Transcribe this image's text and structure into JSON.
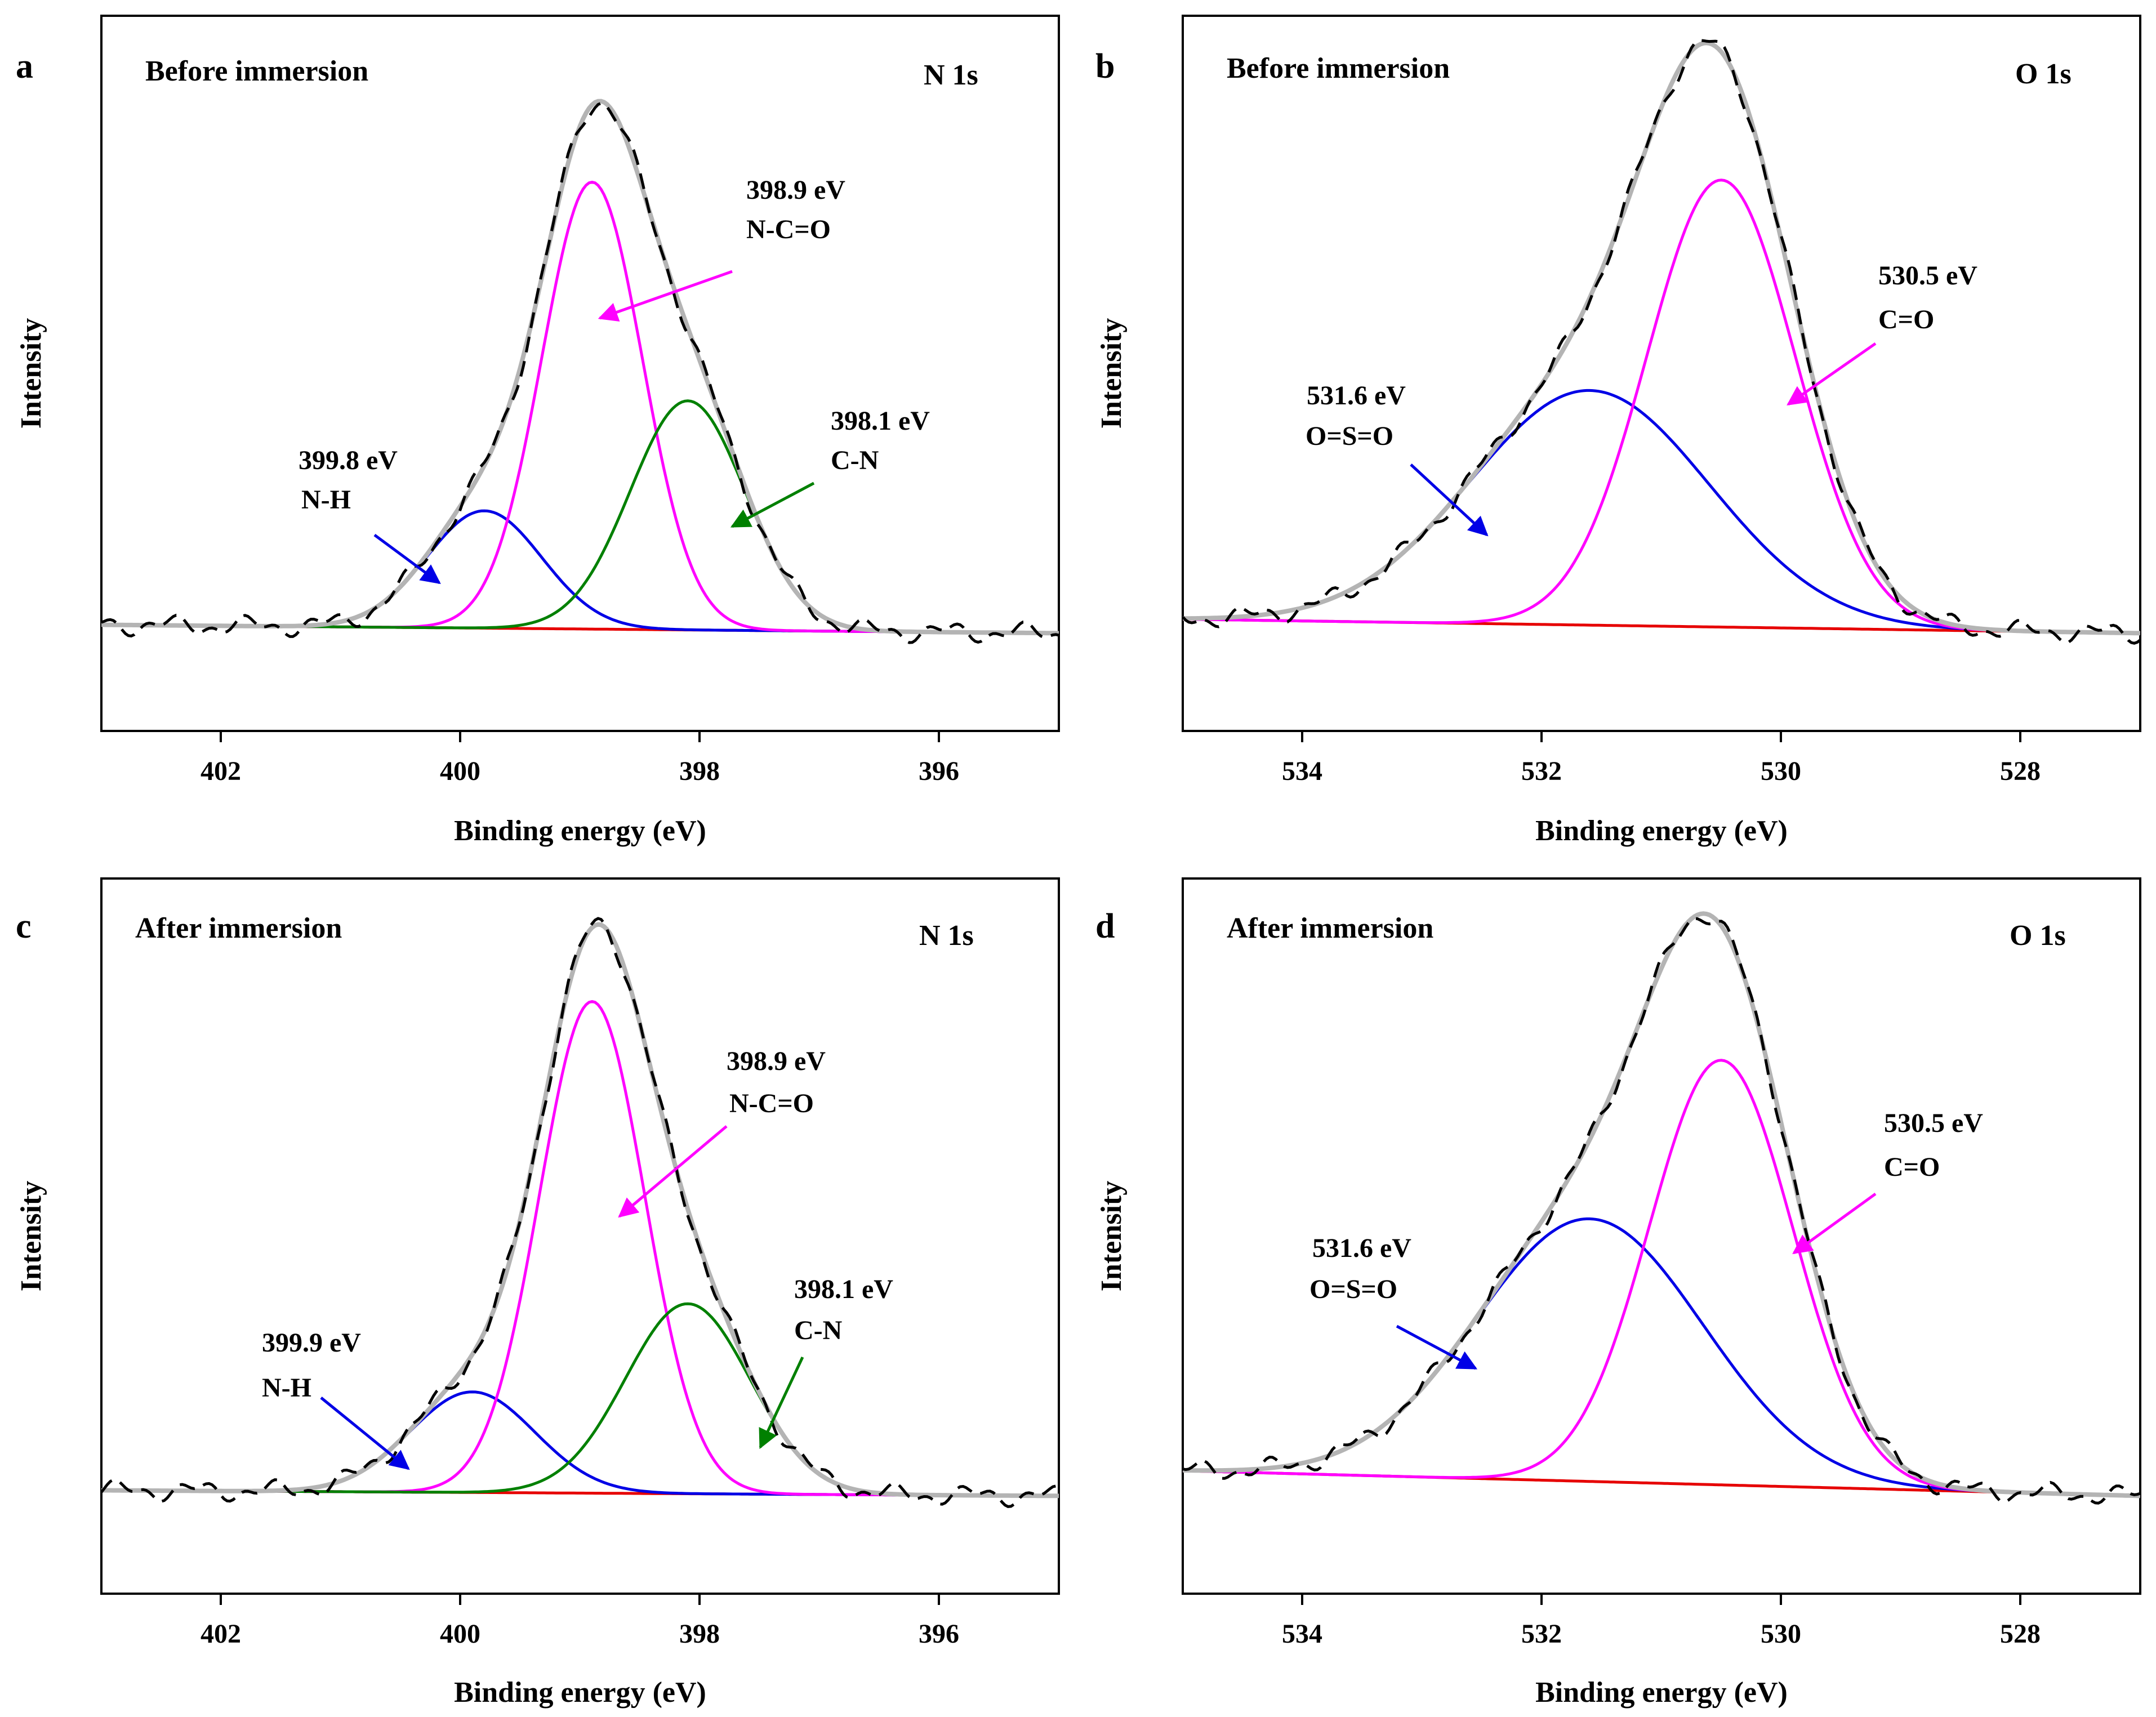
{
  "figure": {
    "x_axis_label": "Binding energy (eV)",
    "y_axis_label": "Intensity",
    "colors": {
      "experimental": "#000000",
      "envelope": "#b4b4b4",
      "background": "#e60000",
      "nh": "#0000e6",
      "nco": "#ff00ff",
      "cn": "#008000",
      "ososo": "#0000e6",
      "co": "#ff00ff"
    }
  },
  "chart_data": [
    {
      "panel": "a",
      "type": "line",
      "title": "Before immersion",
      "spectrum": "N 1s",
      "xlabel": "Binding energy (eV)",
      "ylabel": "Intensity",
      "xlim": [
        403,
        395
      ],
      "ylim": [
        -0.18,
        1.1
      ],
      "xticks": [
        402,
        400,
        398,
        396
      ],
      "baseline": [
        0.01,
        -0.005
      ],
      "components": [
        {
          "name": "N-H",
          "color_key": "nh",
          "center": 399.8,
          "amp": 0.21,
          "sigma": 0.48
        },
        {
          "name": "N-C=O",
          "color_key": "nco",
          "center": 398.9,
          "amp": 0.8,
          "sigma": 0.42
        },
        {
          "name": "C-N",
          "color_key": "cn",
          "center": 398.1,
          "amp": 0.41,
          "sigma": 0.48
        }
      ],
      "annotations": [
        {
          "energy": "398.9 eV",
          "label": "N-C=O",
          "color_key": "nco"
        },
        {
          "energy": "398.1 eV",
          "label": "C-N",
          "color_key": "cn"
        },
        {
          "energy": "399.8 eV",
          "label": "N-H",
          "color_key": "nh"
        }
      ]
    },
    {
      "panel": "b",
      "type": "line",
      "title": "Before immersion",
      "spectrum": "O 1s",
      "xlabel": "Binding energy (eV)",
      "ylabel": "Intensity",
      "xlim": [
        535,
        527
      ],
      "ylim": [
        -0.18,
        1.1
      ],
      "xticks": [
        534,
        532,
        530,
        528
      ],
      "baseline": [
        0.02,
        -0.005
      ],
      "components": [
        {
          "name": "O=S=O",
          "color_key": "ososo",
          "center": 531.6,
          "amp": 0.42,
          "sigma": 1.0
        },
        {
          "name": "C=O",
          "color_key": "co",
          "center": 530.5,
          "amp": 0.8,
          "sigma": 0.62
        }
      ],
      "annotations": [
        {
          "energy": "530.5 eV",
          "label": "C=O",
          "color_key": "co"
        },
        {
          "energy": "531.6 eV",
          "label": "O=S=O",
          "color_key": "ososo"
        }
      ]
    },
    {
      "panel": "c",
      "type": "line",
      "title": "After immersion",
      "spectrum": "N 1s",
      "xlabel": "Binding energy (eV)",
      "ylabel": "Intensity",
      "xlim": [
        403,
        395
      ],
      "ylim": [
        -0.18,
        1.1
      ],
      "xticks": [
        402,
        400,
        398,
        396
      ],
      "baseline": [
        0.005,
        -0.005
      ],
      "components": [
        {
          "name": "N-H",
          "color_key": "nh",
          "center": 399.9,
          "amp": 0.18,
          "sigma": 0.52
        },
        {
          "name": "N-C=O",
          "color_key": "nco",
          "center": 398.9,
          "amp": 0.88,
          "sigma": 0.44
        },
        {
          "name": "C-N",
          "color_key": "cn",
          "center": 398.1,
          "amp": 0.34,
          "sigma": 0.52
        }
      ],
      "annotations": [
        {
          "energy": "398.9 eV",
          "label": "N-C=O",
          "color_key": "nco"
        },
        {
          "energy": "398.1 eV",
          "label": "C-N",
          "color_key": "cn"
        },
        {
          "energy": "399.9 eV",
          "label": "N-H",
          "color_key": "nh"
        }
      ]
    },
    {
      "panel": "d",
      "type": "line",
      "title": "After immersion",
      "spectrum": "O 1s",
      "xlabel": "Binding energy (eV)",
      "ylabel": "Intensity",
      "xlim": [
        535,
        527
      ],
      "ylim": [
        -0.18,
        1.1
      ],
      "xticks": [
        534,
        532,
        530,
        528
      ],
      "baseline": [
        0.04,
        -0.005
      ],
      "components": [
        {
          "name": "O=S=O",
          "color_key": "ososo",
          "center": 531.6,
          "amp": 0.47,
          "sigma": 0.95
        },
        {
          "name": "C=O",
          "color_key": "co",
          "center": 530.5,
          "amp": 0.76,
          "sigma": 0.6
        }
      ],
      "annotations": [
        {
          "energy": "530.5 eV",
          "label": "C=O",
          "color_key": "co"
        },
        {
          "energy": "531.6 eV",
          "label": "O=S=O",
          "color_key": "ososo"
        }
      ]
    }
  ]
}
